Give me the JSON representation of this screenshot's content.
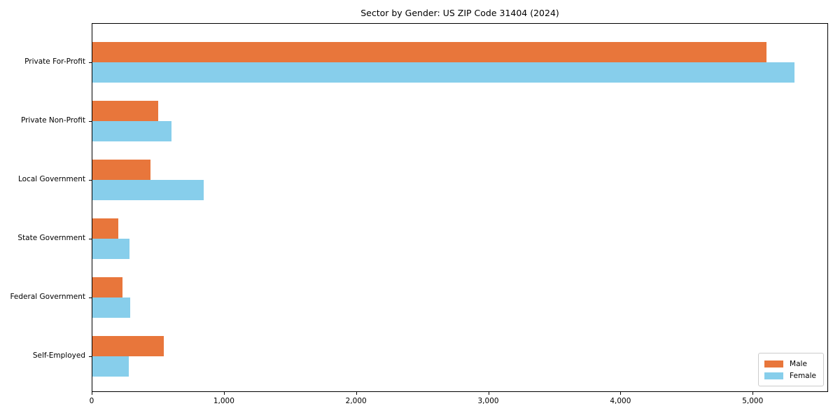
{
  "chart_data": {
    "type": "bar",
    "orientation": "horizontal",
    "title": "Sector by Gender: US ZIP Code 31404 (2024)",
    "categories": [
      "Private For-Profit",
      "Private Non-Profit",
      "Local Government",
      "State Government",
      "Federal Government",
      "Self-Employed"
    ],
    "series": [
      {
        "name": "Male",
        "color": "#e8763b",
        "values": [
          5100,
          500,
          440,
          195,
          230,
          540
        ]
      },
      {
        "name": "Female",
        "color": "#87ceeb",
        "values": [
          5310,
          600,
          840,
          280,
          285,
          275
        ]
      }
    ],
    "xlabel": "",
    "ylabel": "",
    "xlim": [
      0,
      5560
    ],
    "x_ticks": [
      0,
      1000,
      2000,
      3000,
      4000,
      5000
    ],
    "x_tick_labels": [
      "0",
      "1,000",
      "2,000",
      "3,000",
      "4,000",
      "5,000"
    ],
    "grid": false,
    "legend_position": "lower right"
  }
}
